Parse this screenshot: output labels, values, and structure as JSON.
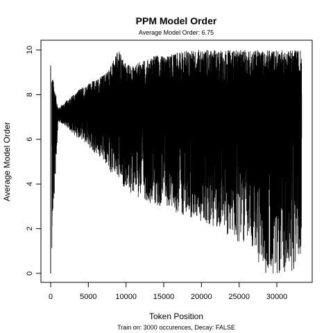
{
  "chart_data": {
    "type": "line",
    "title": "PPM Model Order",
    "subtitle": "Average Model Order: 6.75",
    "xlabel": "Token Position",
    "ylabel": "Average Model Order",
    "footnote": "Train on: 3000 occurences, Decay: FALSE",
    "xlim": [
      0,
      33400
    ],
    "ylim": [
      0,
      10
    ],
    "x_ticks": [
      0,
      5000,
      10000,
      15000,
      20000,
      25000,
      30000
    ],
    "x_tick_labels": [
      "0",
      "5000",
      "10000",
      "15000",
      "20000",
      "25000",
      "30000"
    ],
    "y_ticks": [
      0,
      2,
      4,
      6,
      8,
      10
    ],
    "y_tick_labels": [
      "0",
      "2",
      "4",
      "6",
      "8",
      "10"
    ],
    "grid": false,
    "line_color": "#000000",
    "series": [
      {
        "x": [
          0,
          1000,
          2000,
          3000,
          4000,
          5000,
          6000,
          7000,
          8000,
          9000,
          10000,
          11000,
          12000,
          13000,
          14000,
          15000,
          16000,
          17000,
          18000,
          19000,
          20000,
          21000,
          22000,
          23000,
          24000,
          25000,
          26000,
          27000,
          28000,
          29000,
          30000,
          31000,
          32000,
          33300
        ],
        "upper": [
          9.3,
          7.4,
          7.7,
          8.0,
          8.3,
          8.5,
          8.7,
          8.9,
          9.3,
          10.0,
          9.4,
          9.3,
          9.5,
          9.6,
          9.8,
          9.7,
          9.8,
          9.9,
          10.0,
          10.0,
          10.0,
          10.0,
          10.0,
          10.0,
          10.0,
          10.0,
          10.0,
          10.0,
          10.0,
          10.0,
          10.0,
          10.0,
          10.0,
          10.0
        ],
        "lower": [
          0.0,
          6.8,
          6.6,
          6.2,
          6.0,
          5.6,
          5.3,
          5.0,
          4.5,
          4.0,
          3.8,
          3.4,
          3.4,
          3.2,
          3.0,
          3.0,
          2.8,
          2.6,
          2.6,
          2.4,
          2.3,
          2.2,
          2.0,
          1.8,
          1.6,
          1.4,
          1.3,
          1.0,
          0.0,
          0.0,
          0.0,
          0.0,
          0.0,
          1.0
        ]
      }
    ]
  }
}
